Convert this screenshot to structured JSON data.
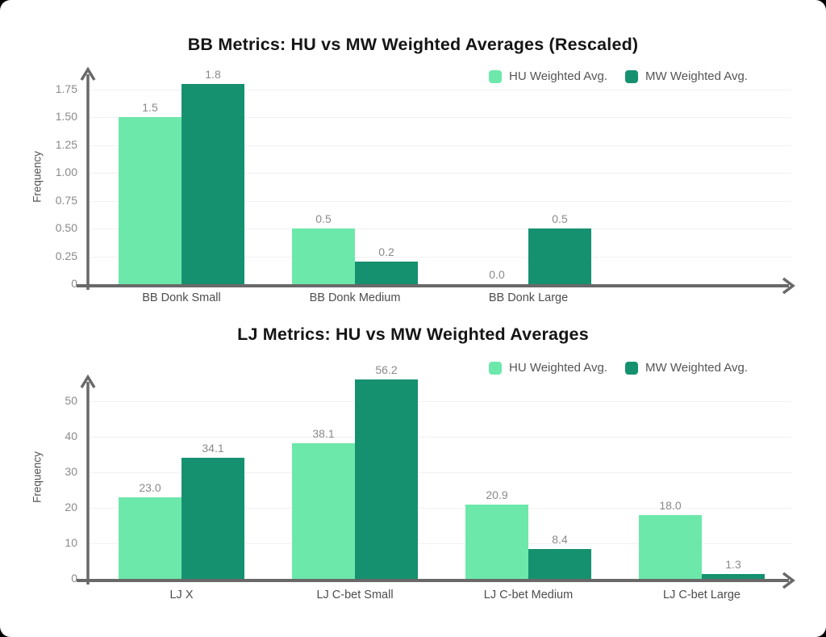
{
  "page": {
    "background": "#000000",
    "card_background": "#ffffff"
  },
  "colors": {
    "hu_series": "#6de8ab",
    "mw_series": "#169170",
    "axis": "#696969",
    "gridline": "#f1f1f1",
    "tick_text": "#8a8a8a",
    "value_text": "#8a8a8a",
    "category_text": "#4d4d4d",
    "title_text": "#151515"
  },
  "chart_data": [
    {
      "type": "bar",
      "title": "BB Metrics: HU vs MW Weighted Averages (Rescaled)",
      "ylabel": "Frequency",
      "xlabel": "",
      "categories": [
        "BB Donk Small",
        "BB Donk Medium",
        "BB Donk Large"
      ],
      "series": [
        {
          "name": "HU Weighted Avg.",
          "values": [
            1.5,
            0.5,
            0.0
          ]
        },
        {
          "name": "MW Weighted Avg.",
          "values": [
            1.8,
            0.2,
            0.5
          ]
        }
      ],
      "value_labels": [
        [
          "1.5",
          "0.5",
          "0.0"
        ],
        [
          "1.8",
          "0.2",
          "0.5"
        ]
      ],
      "yticks": [
        "0",
        "0.25",
        "0.50",
        "0.75",
        "1.00",
        "1.25",
        "1.50",
        "1.75"
      ],
      "ytick_values": [
        0,
        0.25,
        0.5,
        0.75,
        1.0,
        1.25,
        1.5,
        1.75
      ],
      "ylim": [
        0,
        1.9
      ],
      "grid": true,
      "legend_position": "top-right"
    },
    {
      "type": "bar",
      "title": "LJ Metrics: HU vs MW Weighted Averages",
      "ylabel": "Frequency",
      "xlabel": "",
      "categories": [
        "LJ X",
        "LJ C-bet Small",
        "LJ C-bet Medium",
        "LJ C-bet Large"
      ],
      "series": [
        {
          "name": "HU Weighted Avg.",
          "values": [
            23.0,
            38.1,
            20.9,
            18.0
          ]
        },
        {
          "name": "MW Weighted Avg.",
          "values": [
            34.1,
            56.2,
            8.4,
            1.3
          ]
        }
      ],
      "value_labels": [
        [
          "23.0",
          "38.1",
          "20.9",
          "18.0"
        ],
        [
          "34.1",
          "56.2",
          "8.4",
          "1.3"
        ]
      ],
      "yticks": [
        "0",
        "10",
        "20",
        "30",
        "40",
        "50"
      ],
      "ytick_values": [
        0,
        10,
        20,
        30,
        40,
        50
      ],
      "ylim": [
        0,
        57
      ],
      "grid": true,
      "legend_position": "top-right"
    }
  ]
}
